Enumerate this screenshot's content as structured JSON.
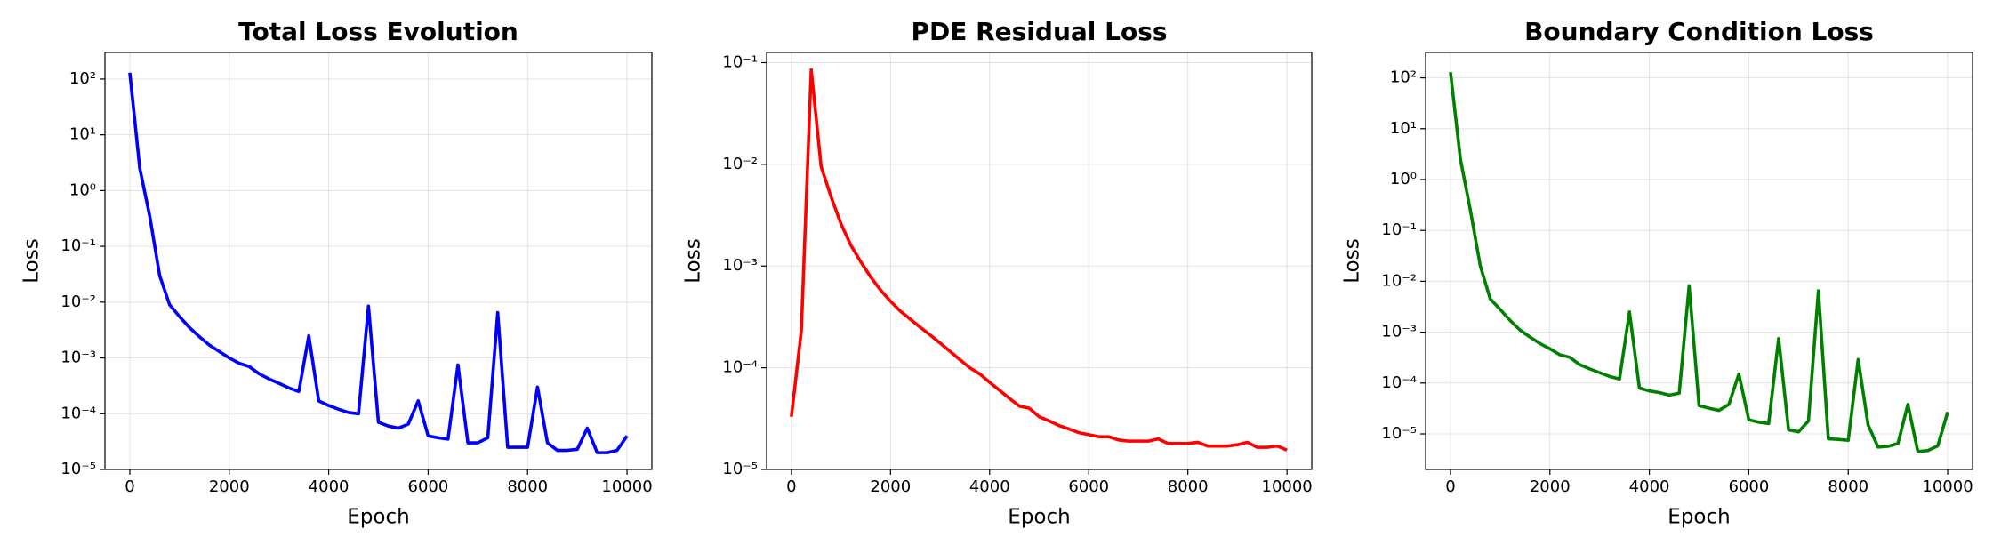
{
  "chart_data": [
    {
      "type": "line",
      "title": "Total Loss Evolution",
      "x_label": "Epoch",
      "y_label": "Loss",
      "color": "#0000ff",
      "log_y": true,
      "grid": true,
      "x": [
        0,
        200,
        400,
        600,
        800,
        1000,
        1200,
        1400,
        1600,
        1800,
        2000,
        2200,
        2400,
        2600,
        2800,
        3000,
        3200,
        3400,
        3600,
        3800,
        4000,
        4200,
        4400,
        4600,
        4800,
        5000,
        5200,
        5400,
        5600,
        5800,
        6000,
        6200,
        6400,
        6600,
        6800,
        7000,
        7200,
        7400,
        7600,
        7800,
        8000,
        8200,
        8400,
        8600,
        8800,
        9000,
        9200,
        9400,
        9600,
        9800,
        10000
      ],
      "values": [
        130,
        2.5,
        0.35,
        0.03,
        0.009,
        0.0055,
        0.0035,
        0.0024,
        0.0017,
        0.0013,
        0.001,
        0.0008,
        0.0007,
        0.00052,
        0.00042,
        0.00035,
        0.00029,
        0.00025,
        0.0025,
        0.00017,
        0.00014,
        0.00012,
        0.000105,
        0.0001,
        0.0085,
        7e-05,
        6e-05,
        5.5e-05,
        6.5e-05,
        0.00017,
        4e-05,
        3.7e-05,
        3.5e-05,
        0.00075,
        3e-05,
        3e-05,
        3.7e-05,
        0.0065,
        2.5e-05,
        2.5e-05,
        2.5e-05,
        0.0003,
        3e-05,
        2.2e-05,
        2.2e-05,
        2.3e-05,
        5.5e-05,
        2e-05,
        2e-05,
        2.2e-05,
        4e-05
      ],
      "xlim": [
        -500,
        10500
      ],
      "xticks": [
        0,
        2000,
        4000,
        6000,
        8000,
        10000
      ],
      "ylim": [
        1e-05,
        300
      ],
      "yticks": [
        {
          "value": 1e-05,
          "label": "10⁻⁵"
        },
        {
          "value": 0.0001,
          "label": "10⁻⁴"
        },
        {
          "value": 0.001,
          "label": "10⁻³"
        },
        {
          "value": 0.01,
          "label": "10⁻²"
        },
        {
          "value": 0.1,
          "label": "10⁻¹"
        },
        {
          "value": 1,
          "label": "10⁰"
        },
        {
          "value": 10,
          "label": "10¹"
        },
        {
          "value": 100,
          "label": "10²"
        }
      ]
    },
    {
      "type": "line",
      "title": "PDE Residual Loss",
      "x_label": "Epoch",
      "y_label": "Loss",
      "color": "#ff0000",
      "log_y": true,
      "grid": true,
      "x": [
        0,
        200,
        400,
        600,
        800,
        1000,
        1200,
        1400,
        1600,
        1800,
        2000,
        2200,
        2400,
        2600,
        2800,
        3000,
        3200,
        3400,
        3600,
        3800,
        4000,
        4200,
        4400,
        4600,
        4800,
        5000,
        5200,
        5400,
        5600,
        5800,
        6000,
        6200,
        6400,
        6600,
        6800,
        7000,
        7200,
        7400,
        7600,
        7800,
        8000,
        8200,
        8400,
        8600,
        8800,
        9000,
        9200,
        9400,
        9600,
        9800,
        10000
      ],
      "values": [
        3.3e-05,
        0.00023,
        0.085,
        0.0095,
        0.0048,
        0.0026,
        0.0016,
        0.0011,
        0.00078,
        0.00058,
        0.00045,
        0.00036,
        0.0003,
        0.00025,
        0.00021,
        0.000175,
        0.000145,
        0.00012,
        0.0001,
        8.7e-05,
        7.2e-05,
        6e-05,
        5e-05,
        4.2e-05,
        4e-05,
        3.3e-05,
        3e-05,
        2.7e-05,
        2.5e-05,
        2.3e-05,
        2.2e-05,
        2.1e-05,
        2.1e-05,
        1.95e-05,
        1.9e-05,
        1.9e-05,
        1.9e-05,
        2e-05,
        1.8e-05,
        1.8e-05,
        1.8e-05,
        1.85e-05,
        1.7e-05,
        1.7e-05,
        1.7e-05,
        1.75e-05,
        1.85e-05,
        1.65e-05,
        1.65e-05,
        1.7e-05,
        1.55e-05
      ],
      "xlim": [
        -500,
        10500
      ],
      "xticks": [
        0,
        2000,
        4000,
        6000,
        8000,
        10000
      ],
      "ylim": [
        1e-05,
        0.126
      ],
      "yticks": [
        {
          "value": 1e-05,
          "label": "10⁻⁵"
        },
        {
          "value": 0.0001,
          "label": "10⁻⁴"
        },
        {
          "value": 0.001,
          "label": "10⁻³"
        },
        {
          "value": 0.01,
          "label": "10⁻²"
        },
        {
          "value": 0.1,
          "label": "10⁻¹"
        }
      ]
    },
    {
      "type": "line",
      "title": "Boundary Condition Loss",
      "x_label": "Epoch",
      "y_label": "Loss",
      "color": "#008000",
      "log_y": true,
      "grid": true,
      "x": [
        0,
        200,
        400,
        600,
        800,
        1000,
        1200,
        1400,
        1600,
        1800,
        2000,
        2200,
        2400,
        2600,
        2800,
        3000,
        3200,
        3400,
        3600,
        3800,
        4000,
        4200,
        4400,
        4600,
        4800,
        5000,
        5200,
        5400,
        5600,
        5800,
        6000,
        6200,
        6400,
        6600,
        6800,
        7000,
        7200,
        7400,
        7600,
        7800,
        8000,
        8200,
        8400,
        8600,
        8800,
        9000,
        9200,
        9400,
        9600,
        9800,
        10000
      ],
      "values": [
        130,
        2.5,
        0.25,
        0.02,
        0.0045,
        0.0028,
        0.0017,
        0.0011,
        0.0008,
        0.0006,
        0.00047,
        0.00036,
        0.00032,
        0.00023,
        0.00019,
        0.00016,
        0.000135,
        0.00012,
        0.0025,
        8e-05,
        7e-05,
        6.5e-05,
        5.8e-05,
        6.3e-05,
        0.0082,
        3.6e-05,
        3.2e-05,
        2.9e-05,
        3.8e-05,
        0.00015,
        1.9e-05,
        1.7e-05,
        1.6e-05,
        0.00075,
        1.2e-05,
        1.1e-05,
        1.8e-05,
        0.0065,
        8e-06,
        7.8e-06,
        7.5e-06,
        0.00029,
        1.5e-05,
        5.5e-06,
        5.7e-06,
        6.5e-06,
        3.8e-05,
        4.5e-06,
        4.7e-06,
        5.8e-06,
        2.7e-05
      ],
      "xlim": [
        -500,
        10500
      ],
      "xticks": [
        0,
        2000,
        4000,
        6000,
        8000,
        10000
      ],
      "ylim": [
        2e-06,
        316
      ],
      "yticks": [
        {
          "value": 1e-05,
          "label": "10⁻⁵"
        },
        {
          "value": 0.0001,
          "label": "10⁻⁴"
        },
        {
          "value": 0.001,
          "label": "10⁻³"
        },
        {
          "value": 0.01,
          "label": "10⁻²"
        },
        {
          "value": 0.1,
          "label": "10⁻¹"
        },
        {
          "value": 1,
          "label": "10⁰"
        },
        {
          "value": 10,
          "label": "10¹"
        },
        {
          "value": 100,
          "label": "10²"
        }
      ]
    }
  ]
}
